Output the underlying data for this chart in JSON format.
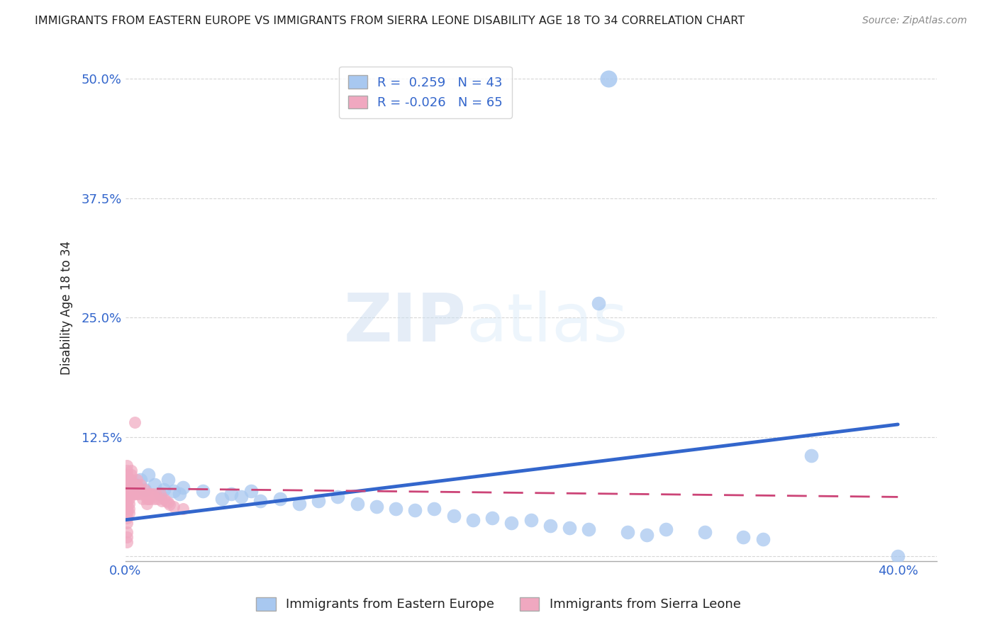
{
  "title": "IMMIGRANTS FROM EASTERN EUROPE VS IMMIGRANTS FROM SIERRA LEONE DISABILITY AGE 18 TO 34 CORRELATION CHART",
  "source": "Source: ZipAtlas.com",
  "ylabel": "Disability Age 18 to 34",
  "xlim": [
    0.0,
    0.42
  ],
  "ylim": [
    -0.005,
    0.525
  ],
  "xticks": [
    0.0,
    0.1,
    0.2,
    0.3,
    0.4
  ],
  "xtick_labels": [
    "0.0%",
    "",
    "",
    "",
    "40.0%"
  ],
  "ytick_labels": [
    "",
    "12.5%",
    "25.0%",
    "37.5%",
    "50.0%"
  ],
  "yticks": [
    0.0,
    0.125,
    0.25,
    0.375,
    0.5
  ],
  "blue_R": 0.259,
  "blue_N": 43,
  "pink_R": -0.026,
  "pink_N": 65,
  "blue_color": "#a8c8f0",
  "pink_color": "#f0a8c0",
  "blue_line_color": "#3366cc",
  "pink_line_color": "#cc4477",
  "blue_scatter": [
    [
      0.005,
      0.075
    ],
    [
      0.008,
      0.08
    ],
    [
      0.01,
      0.07
    ],
    [
      0.012,
      0.085
    ],
    [
      0.015,
      0.075
    ],
    [
      0.018,
      0.065
    ],
    [
      0.02,
      0.07
    ],
    [
      0.022,
      0.08
    ],
    [
      0.025,
      0.068
    ],
    [
      0.028,
      0.065
    ],
    [
      0.03,
      0.072
    ],
    [
      0.04,
      0.068
    ],
    [
      0.05,
      0.06
    ],
    [
      0.055,
      0.065
    ],
    [
      0.06,
      0.062
    ],
    [
      0.065,
      0.068
    ],
    [
      0.07,
      0.058
    ],
    [
      0.08,
      0.06
    ],
    [
      0.09,
      0.055
    ],
    [
      0.1,
      0.058
    ],
    [
      0.11,
      0.062
    ],
    [
      0.12,
      0.055
    ],
    [
      0.13,
      0.052
    ],
    [
      0.14,
      0.05
    ],
    [
      0.15,
      0.048
    ],
    [
      0.16,
      0.05
    ],
    [
      0.17,
      0.042
    ],
    [
      0.18,
      0.038
    ],
    [
      0.19,
      0.04
    ],
    [
      0.2,
      0.035
    ],
    [
      0.21,
      0.038
    ],
    [
      0.22,
      0.032
    ],
    [
      0.23,
      0.03
    ],
    [
      0.24,
      0.028
    ],
    [
      0.245,
      0.265
    ],
    [
      0.26,
      0.025
    ],
    [
      0.27,
      0.022
    ],
    [
      0.28,
      0.028
    ],
    [
      0.3,
      0.025
    ],
    [
      0.32,
      0.02
    ],
    [
      0.33,
      0.018
    ],
    [
      0.355,
      0.105
    ],
    [
      0.4,
      0.0
    ]
  ],
  "blue_outlier": [
    0.25,
    0.5
  ],
  "pink_scatter": [
    [
      0.0,
      0.065
    ],
    [
      0.001,
      0.07
    ],
    [
      0.001,
      0.075
    ],
    [
      0.001,
      0.08
    ],
    [
      0.001,
      0.085
    ],
    [
      0.001,
      0.09
    ],
    [
      0.001,
      0.095
    ],
    [
      0.001,
      0.06
    ],
    [
      0.001,
      0.055
    ],
    [
      0.001,
      0.05
    ],
    [
      0.001,
      0.045
    ],
    [
      0.001,
      0.04
    ],
    [
      0.001,
      0.035
    ],
    [
      0.001,
      0.025
    ],
    [
      0.001,
      0.02
    ],
    [
      0.001,
      0.015
    ],
    [
      0.002,
      0.07
    ],
    [
      0.002,
      0.065
    ],
    [
      0.002,
      0.06
    ],
    [
      0.002,
      0.075
    ],
    [
      0.002,
      0.08
    ],
    [
      0.002,
      0.055
    ],
    [
      0.002,
      0.05
    ],
    [
      0.002,
      0.045
    ],
    [
      0.003,
      0.07
    ],
    [
      0.003,
      0.075
    ],
    [
      0.003,
      0.065
    ],
    [
      0.003,
      0.08
    ],
    [
      0.003,
      0.085
    ],
    [
      0.003,
      0.09
    ],
    [
      0.004,
      0.07
    ],
    [
      0.004,
      0.065
    ],
    [
      0.004,
      0.075
    ],
    [
      0.005,
      0.14
    ],
    [
      0.005,
      0.065
    ],
    [
      0.005,
      0.07
    ],
    [
      0.006,
      0.08
    ],
    [
      0.006,
      0.075
    ],
    [
      0.006,
      0.065
    ],
    [
      0.007,
      0.07
    ],
    [
      0.007,
      0.065
    ],
    [
      0.008,
      0.075
    ],
    [
      0.008,
      0.07
    ],
    [
      0.009,
      0.065
    ],
    [
      0.009,
      0.06
    ],
    [
      0.01,
      0.07
    ],
    [
      0.01,
      0.065
    ],
    [
      0.011,
      0.06
    ],
    [
      0.011,
      0.055
    ],
    [
      0.012,
      0.065
    ],
    [
      0.012,
      0.06
    ],
    [
      0.013,
      0.065
    ],
    [
      0.013,
      0.06
    ],
    [
      0.014,
      0.065
    ],
    [
      0.015,
      0.06
    ],
    [
      0.016,
      0.065
    ],
    [
      0.017,
      0.06
    ],
    [
      0.018,
      0.065
    ],
    [
      0.019,
      0.058
    ],
    [
      0.02,
      0.06
    ],
    [
      0.021,
      0.058
    ],
    [
      0.022,
      0.056
    ],
    [
      0.023,
      0.054
    ],
    [
      0.025,
      0.052
    ],
    [
      0.03,
      0.05
    ]
  ],
  "blue_trend_x": [
    0.0,
    0.4
  ],
  "blue_trend_y": [
    0.038,
    0.138
  ],
  "pink_trend_x": [
    0.0,
    0.4
  ],
  "pink_trend_y": [
    0.071,
    0.062
  ],
  "legend_blue_label": "Immigrants from Eastern Europe",
  "legend_pink_label": "Immigrants from Sierra Leone",
  "watermark_zip": "ZIP",
  "watermark_atlas": "atlas",
  "title_color": "#222222",
  "tick_color": "#3366cc",
  "grid_color": "#cccccc",
  "legend_text_color": "#3366cc"
}
